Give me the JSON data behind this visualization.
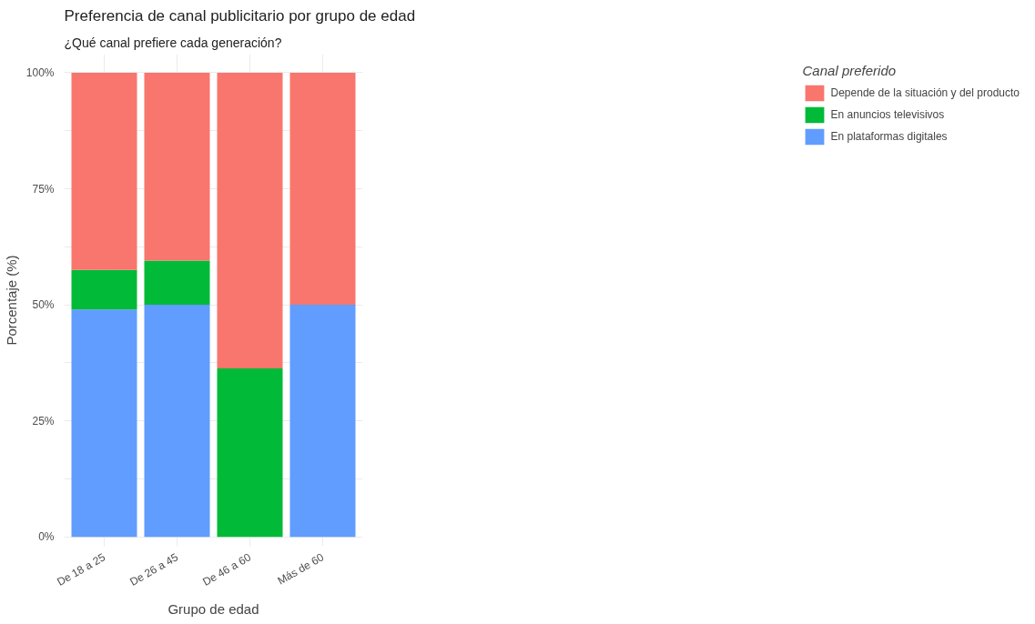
{
  "chart_data": {
    "type": "bar",
    "title": "Preferencia de canal publicitario por grupo de edad",
    "subtitle": "¿Qué canal prefiere cada generación?",
    "xlabel": "Grupo de edad",
    "ylabel": "Porcentaje (%)",
    "legend_title": "Canal preferido",
    "categories": [
      "De 18 a 25",
      "De 26 a 45",
      "De 46 a 60",
      "Más de 60"
    ],
    "stacked": true,
    "series": [
      {
        "name": "En plataformas digitales",
        "color": "#619cff",
        "values": [
          49.0,
          50.0,
          0,
          50.0
        ]
      },
      {
        "name": "En anuncios televisivos",
        "color": "#00ba38",
        "values": [
          8.5,
          9.5,
          36.3,
          0
        ]
      },
      {
        "name": "Depende de la situación y del producto",
        "color": "#f8766d",
        "values": [
          42.5,
          40.5,
          63.7,
          50.0
        ]
      }
    ],
    "ylim": [
      -2,
      104
    ],
    "yticks": [
      {
        "value": 0,
        "label": "0%"
      },
      {
        "value": 12.5,
        "label": null
      },
      {
        "value": 25,
        "label": "25%"
      },
      {
        "value": 37.5,
        "label": null
      },
      {
        "value": 50,
        "label": "50%"
      },
      {
        "value": 62.5,
        "label": null
      },
      {
        "value": 75,
        "label": "75%"
      },
      {
        "value": 87.5,
        "label": null
      },
      {
        "value": 100,
        "label": "100%"
      }
    ],
    "grid": true,
    "legend": "right"
  }
}
